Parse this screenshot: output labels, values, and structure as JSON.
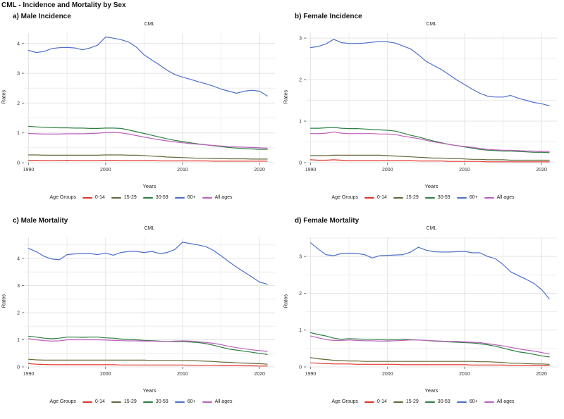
{
  "page": {
    "title": "CML - Incidence and Mortality by Sex"
  },
  "years": [
    1990,
    1991,
    1992,
    1993,
    1994,
    1995,
    1996,
    1997,
    1998,
    1999,
    2000,
    2001,
    2002,
    2003,
    2004,
    2005,
    2006,
    2007,
    2008,
    2009,
    2010,
    2011,
    2012,
    2013,
    2014,
    2015,
    2016,
    2017,
    2018,
    2019,
    2020,
    2021
  ],
  "legend": {
    "title": "Age Groups",
    "items": [
      {
        "label": "0-14",
        "color": "#e0372b"
      },
      {
        "label": "15-29",
        "color": "#66683a"
      },
      {
        "label": "30-59",
        "color": "#2d7e43"
      },
      {
        "label": "60+",
        "color": "#4d6fcb"
      },
      {
        "label": "All ages",
        "color": "#bc60bc"
      }
    ]
  },
  "colors": {
    "grid": "#e4e4e4",
    "grid_minor": "#ededed",
    "text": "#111111",
    "background": "#ffffff"
  },
  "chart_data": [
    {
      "panel_label": "a) Male Incidence",
      "subtitle": "CML",
      "type": "line",
      "xlabel": "Years",
      "ylabel": "Rates",
      "xticks": [
        1990,
        2000,
        2010,
        2020
      ],
      "yticks": [
        0,
        1,
        2,
        3,
        4
      ],
      "ylim": [
        0,
        4.35
      ],
      "xlim": [
        1989.4,
        2022
      ],
      "grid": true,
      "legend_position": "bottom",
      "series": [
        {
          "name": "0-14",
          "values": [
            0.08,
            0.08,
            0.07,
            0.07,
            0.07,
            0.08,
            0.07,
            0.07,
            0.07,
            0.07,
            0.08,
            0.08,
            0.07,
            0.07,
            0.07,
            0.07,
            0.07,
            0.06,
            0.06,
            0.06,
            0.06,
            0.06,
            0.06,
            0.06,
            0.05,
            0.05,
            0.05,
            0.05,
            0.05,
            0.05,
            0.05,
            0.05
          ]
        },
        {
          "name": "15-29",
          "values": [
            0.26,
            0.26,
            0.25,
            0.25,
            0.25,
            0.25,
            0.25,
            0.25,
            0.25,
            0.25,
            0.26,
            0.26,
            0.26,
            0.25,
            0.25,
            0.24,
            0.22,
            0.21,
            0.19,
            0.18,
            0.17,
            0.16,
            0.15,
            0.15,
            0.14,
            0.14,
            0.13,
            0.13,
            0.13,
            0.12,
            0.12,
            0.12
          ]
        },
        {
          "name": "30-59",
          "values": [
            1.22,
            1.2,
            1.19,
            1.18,
            1.17,
            1.17,
            1.16,
            1.16,
            1.15,
            1.15,
            1.16,
            1.16,
            1.15,
            1.1,
            1.04,
            0.98,
            0.92,
            0.86,
            0.8,
            0.75,
            0.71,
            0.67,
            0.63,
            0.6,
            0.57,
            0.54,
            0.51,
            0.49,
            0.47,
            0.46,
            0.45,
            0.45
          ]
        },
        {
          "name": "60+",
          "values": [
            3.77,
            3.7,
            3.73,
            3.83,
            3.86,
            3.87,
            3.85,
            3.79,
            3.85,
            3.95,
            4.22,
            4.18,
            4.13,
            4.05,
            3.88,
            3.62,
            3.45,
            3.28,
            3.1,
            2.96,
            2.87,
            2.8,
            2.72,
            2.65,
            2.57,
            2.47,
            2.4,
            2.33,
            2.4,
            2.43,
            2.4,
            2.24
          ]
        },
        {
          "name": "All ages",
          "values": [
            0.98,
            0.97,
            0.96,
            0.96,
            0.96,
            0.97,
            0.97,
            0.97,
            0.98,
            0.99,
            1.01,
            1.02,
            1.0,
            0.96,
            0.91,
            0.86,
            0.81,
            0.77,
            0.73,
            0.7,
            0.67,
            0.64,
            0.62,
            0.6,
            0.58,
            0.56,
            0.54,
            0.53,
            0.52,
            0.51,
            0.5,
            0.49
          ]
        }
      ]
    },
    {
      "panel_label": "b) Female Incidence",
      "subtitle": "CML",
      "type": "line",
      "xlabel": "Years",
      "ylabel": "Rates",
      "xticks": [
        1990,
        2000,
        2010,
        2020
      ],
      "yticks": [
        0,
        1,
        2,
        3
      ],
      "ylim": [
        0,
        3.12
      ],
      "xlim": [
        1989.4,
        2022
      ],
      "grid": true,
      "legend_position": "bottom",
      "series": [
        {
          "name": "0-14",
          "values": [
            0.07,
            0.06,
            0.06,
            0.07,
            0.06,
            0.05,
            0.05,
            0.05,
            0.05,
            0.05,
            0.05,
            0.05,
            0.05,
            0.05,
            0.04,
            0.04,
            0.04,
            0.04,
            0.03,
            0.03,
            0.03,
            0.03,
            0.03,
            0.02,
            0.02,
            0.02,
            0.02,
            0.02,
            0.02,
            0.02,
            0.02,
            0.02
          ]
        },
        {
          "name": "15-29",
          "values": [
            0.17,
            0.17,
            0.17,
            0.18,
            0.18,
            0.18,
            0.18,
            0.18,
            0.18,
            0.18,
            0.17,
            0.16,
            0.15,
            0.14,
            0.13,
            0.12,
            0.11,
            0.11,
            0.1,
            0.1,
            0.09,
            0.08,
            0.08,
            0.07,
            0.07,
            0.07,
            0.06,
            0.06,
            0.06,
            0.06,
            0.06,
            0.06
          ]
        },
        {
          "name": "30-59",
          "values": [
            0.83,
            0.83,
            0.84,
            0.85,
            0.83,
            0.82,
            0.82,
            0.81,
            0.8,
            0.79,
            0.78,
            0.76,
            0.71,
            0.66,
            0.62,
            0.57,
            0.52,
            0.48,
            0.44,
            0.41,
            0.38,
            0.35,
            0.32,
            0.3,
            0.29,
            0.28,
            0.28,
            0.27,
            0.26,
            0.25,
            0.25,
            0.24
          ]
        },
        {
          "name": "60+",
          "values": [
            2.77,
            2.8,
            2.86,
            2.97,
            2.89,
            2.87,
            2.87,
            2.88,
            2.9,
            2.92,
            2.91,
            2.88,
            2.81,
            2.74,
            2.6,
            2.44,
            2.34,
            2.24,
            2.12,
            1.99,
            1.88,
            1.77,
            1.67,
            1.6,
            1.58,
            1.58,
            1.62,
            1.55,
            1.5,
            1.45,
            1.42,
            1.37
          ]
        },
        {
          "name": "All ages",
          "values": [
            0.7,
            0.7,
            0.71,
            0.74,
            0.71,
            0.7,
            0.7,
            0.7,
            0.7,
            0.69,
            0.69,
            0.68,
            0.64,
            0.61,
            0.58,
            0.54,
            0.5,
            0.47,
            0.44,
            0.41,
            0.39,
            0.37,
            0.34,
            0.32,
            0.31,
            0.3,
            0.3,
            0.29,
            0.28,
            0.28,
            0.27,
            0.27
          ]
        }
      ]
    },
    {
      "panel_label": "c) Male Mortality",
      "subtitle": "CML",
      "type": "line",
      "xlabel": "Years",
      "ylabel": "Rates",
      "xticks": [
        1990,
        2000,
        2010,
        2020
      ],
      "yticks": [
        0,
        1,
        2,
        3,
        4
      ],
      "ylim": [
        0,
        4.78
      ],
      "xlim": [
        1989.4,
        2022
      ],
      "grid": true,
      "legend_position": "bottom",
      "series": [
        {
          "name": "0-14",
          "values": [
            0.12,
            0.1,
            0.09,
            0.08,
            0.08,
            0.08,
            0.08,
            0.08,
            0.08,
            0.08,
            0.08,
            0.08,
            0.07,
            0.07,
            0.07,
            0.07,
            0.07,
            0.07,
            0.07,
            0.07,
            0.07,
            0.06,
            0.06,
            0.06,
            0.06,
            0.05,
            0.05,
            0.05,
            0.04,
            0.04,
            0.03,
            0.03
          ]
        },
        {
          "name": "15-29",
          "values": [
            0.28,
            0.26,
            0.25,
            0.25,
            0.25,
            0.25,
            0.25,
            0.25,
            0.25,
            0.25,
            0.25,
            0.25,
            0.25,
            0.25,
            0.25,
            0.25,
            0.24,
            0.24,
            0.24,
            0.24,
            0.24,
            0.23,
            0.22,
            0.21,
            0.2,
            0.18,
            0.17,
            0.15,
            0.14,
            0.13,
            0.12,
            0.1
          ]
        },
        {
          "name": "30-59",
          "values": [
            1.13,
            1.1,
            1.06,
            1.04,
            1.06,
            1.1,
            1.1,
            1.09,
            1.1,
            1.1,
            1.07,
            1.06,
            1.03,
            1.01,
            1.0,
            0.98,
            0.97,
            0.95,
            0.94,
            0.93,
            0.93,
            0.92,
            0.9,
            0.86,
            0.8,
            0.73,
            0.66,
            0.62,
            0.58,
            0.54,
            0.5,
            0.46
          ]
        },
        {
          "name": "60+",
          "values": [
            4.37,
            4.25,
            4.08,
            3.98,
            3.95,
            4.14,
            4.17,
            4.18,
            4.18,
            4.14,
            4.2,
            4.12,
            4.22,
            4.26,
            4.26,
            4.22,
            4.26,
            4.18,
            4.22,
            4.33,
            4.6,
            4.55,
            4.5,
            4.44,
            4.3,
            4.1,
            3.88,
            3.68,
            3.5,
            3.32,
            3.13,
            3.05
          ]
        },
        {
          "name": "All ages",
          "values": [
            1.04,
            1.0,
            0.97,
            0.95,
            0.96,
            1.0,
            1.0,
            1.0,
            1.0,
            1.0,
            0.99,
            0.98,
            0.97,
            0.96,
            0.96,
            0.95,
            0.95,
            0.94,
            0.94,
            0.95,
            0.96,
            0.95,
            0.93,
            0.9,
            0.87,
            0.82,
            0.76,
            0.71,
            0.67,
            0.63,
            0.6,
            0.57
          ]
        }
      ]
    },
    {
      "panel_label": "d) Female Mortality",
      "subtitle": "CML",
      "type": "line",
      "xlabel": "Years",
      "ylabel": "Rates",
      "xticks": [
        1990,
        2000,
        2010,
        2020
      ],
      "yticks": [
        0,
        1,
        2,
        3
      ],
      "ylim": [
        0,
        3.52
      ],
      "xlim": [
        1989.4,
        2022
      ],
      "grid": true,
      "legend_position": "bottom",
      "series": [
        {
          "name": "0-14",
          "values": [
            0.11,
            0.1,
            0.09,
            0.08,
            0.08,
            0.08,
            0.07,
            0.07,
            0.07,
            0.07,
            0.07,
            0.07,
            0.06,
            0.06,
            0.06,
            0.06,
            0.06,
            0.06,
            0.06,
            0.06,
            0.06,
            0.05,
            0.05,
            0.05,
            0.05,
            0.05,
            0.04,
            0.04,
            0.04,
            0.04,
            0.03,
            0.03
          ]
        },
        {
          "name": "15-29",
          "values": [
            0.25,
            0.22,
            0.2,
            0.18,
            0.17,
            0.16,
            0.16,
            0.15,
            0.15,
            0.15,
            0.15,
            0.15,
            0.15,
            0.15,
            0.15,
            0.15,
            0.15,
            0.15,
            0.15,
            0.15,
            0.15,
            0.15,
            0.14,
            0.14,
            0.13,
            0.12,
            0.1,
            0.1,
            0.09,
            0.08,
            0.08,
            0.07
          ]
        },
        {
          "name": "30-59",
          "values": [
            0.93,
            0.88,
            0.84,
            0.78,
            0.75,
            0.77,
            0.76,
            0.75,
            0.75,
            0.74,
            0.73,
            0.74,
            0.75,
            0.74,
            0.73,
            0.72,
            0.7,
            0.69,
            0.68,
            0.67,
            0.66,
            0.65,
            0.63,
            0.6,
            0.56,
            0.51,
            0.46,
            0.41,
            0.38,
            0.34,
            0.3,
            0.27
          ]
        },
        {
          "name": "60+",
          "values": [
            3.37,
            3.2,
            3.05,
            3.02,
            3.08,
            3.09,
            3.08,
            3.05,
            2.96,
            3.02,
            3.03,
            3.04,
            3.05,
            3.12,
            3.25,
            3.17,
            3.13,
            3.12,
            3.12,
            3.13,
            3.14,
            3.1,
            3.1,
            3.0,
            2.94,
            2.78,
            2.58,
            2.48,
            2.38,
            2.27,
            2.1,
            1.85
          ]
        },
        {
          "name": "All ages",
          "values": [
            0.84,
            0.79,
            0.74,
            0.72,
            0.72,
            0.73,
            0.72,
            0.71,
            0.71,
            0.7,
            0.7,
            0.71,
            0.72,
            0.73,
            0.73,
            0.72,
            0.71,
            0.7,
            0.69,
            0.69,
            0.68,
            0.67,
            0.66,
            0.63,
            0.6,
            0.57,
            0.53,
            0.49,
            0.46,
            0.43,
            0.39,
            0.35
          ]
        }
      ]
    }
  ]
}
